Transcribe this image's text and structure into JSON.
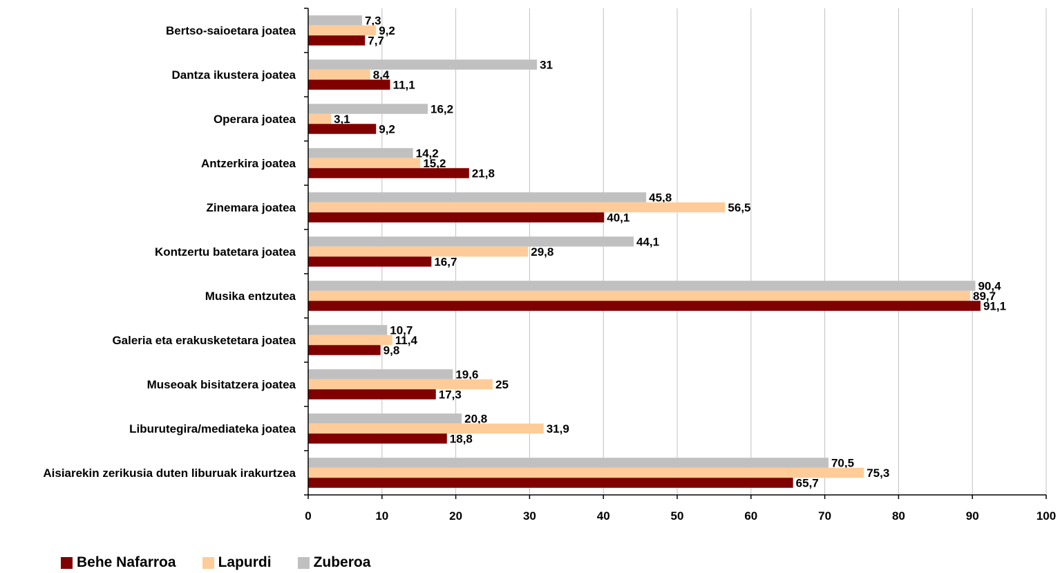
{
  "chart_data": {
    "type": "bar",
    "orientation": "horizontal",
    "categories": [
      "Bertso-saioetara joatea",
      "Dantza ikustera joatea",
      "Operara joatea",
      "Antzerkira joatea",
      "Zinemara joatea",
      "Kontzertu batetara joatea",
      "Musika entzutea",
      "Galeria eta erakusketetara joatea",
      "Museoak bisitatzera joatea",
      "Liburutegira/mediateka joatea",
      "Aisiarekin zerikusia duten liburuak irakurtzea"
    ],
    "series": [
      {
        "name": "Behe Nafarroa",
        "color": "#800000",
        "values": [
          7.7,
          11.1,
          9.2,
          21.8,
          40.1,
          16.7,
          91.1,
          9.8,
          17.3,
          18.8,
          65.7
        ],
        "labels": [
          "7,7",
          "11,1",
          "9,2",
          "21,8",
          "40,1",
          "16,7",
          "91,1",
          "9,8",
          "17,3",
          "18,8",
          "65,7"
        ]
      },
      {
        "name": "Lapurdi",
        "color": "#ffcc99",
        "values": [
          9.2,
          8.4,
          3.1,
          15.2,
          56.5,
          29.8,
          89.7,
          11.4,
          25,
          31.9,
          75.3
        ],
        "labels": [
          "9,2",
          "8,4",
          "3,1",
          "15,2",
          "56,5",
          "29,8",
          "89,7",
          "11,4",
          "25",
          "31,9",
          "75,3"
        ]
      },
      {
        "name": "Zuberoa",
        "color": "#c0c0c0",
        "values": [
          7.3,
          31,
          16.2,
          14.2,
          45.8,
          44.1,
          90.4,
          10.7,
          19.6,
          20.8,
          70.5
        ],
        "labels": [
          "7,3",
          "31",
          "16,2",
          "14,2",
          "45,8",
          "44,1",
          "90,4",
          "10,7",
          "19,6",
          "20,8",
          "70,5"
        ]
      }
    ],
    "xlim": [
      0,
      100
    ],
    "xticks": [
      0,
      10,
      20,
      30,
      40,
      50,
      60,
      70,
      80,
      90,
      100
    ],
    "grid": "vertical",
    "legend_position": "bottom-left"
  }
}
